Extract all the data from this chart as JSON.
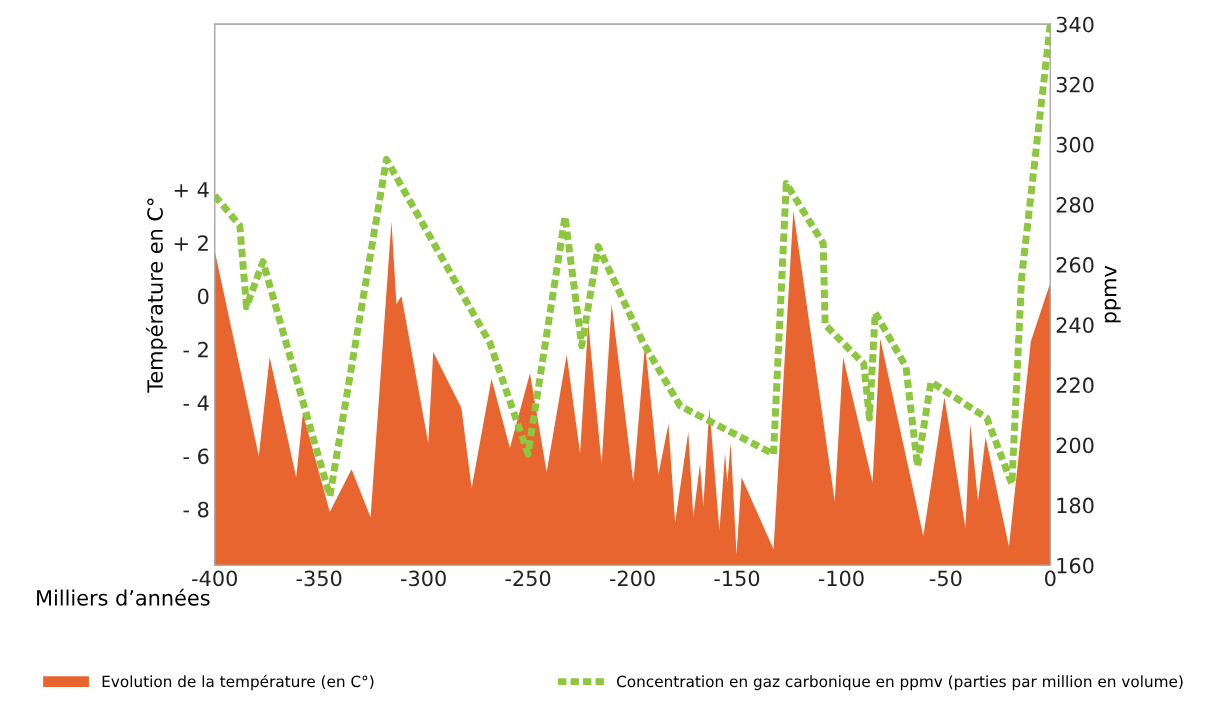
{
  "chart_data": {
    "type": "area",
    "xlabel": "Milliers d’années",
    "ylabel": "Température en C°",
    "y2label": "ppmv",
    "xlim": [
      -400,
      0
    ],
    "xticks": [
      -400,
      -350,
      -300,
      -250,
      -200,
      -150,
      -100,
      -50,
      0
    ],
    "ylim": [
      -10.1,
      10.2
    ],
    "yticks": [
      {
        "value": 4,
        "label": "+ 4"
      },
      {
        "value": 2,
        "label": "+ 2"
      },
      0,
      {
        "value": -2,
        "label": "- 2"
      },
      {
        "value": -4,
        "label": "- 4"
      },
      {
        "value": -6,
        "label": "- 6"
      },
      {
        "value": -8,
        "label": "- 8"
      }
    ],
    "y2lim": [
      160,
      340
    ],
    "y2ticks": [
      160,
      180,
      200,
      220,
      240,
      260,
      280,
      300,
      320,
      340
    ],
    "grid": false,
    "legend": "bottom",
    "series": [
      {
        "name": "Evolution de la température (en C°)",
        "color": "#e9652f",
        "x": [
          -400,
          -378.9,
          -373.7,
          -361,
          -357.8,
          -344.9,
          -334.5,
          -325.4,
          -315.4,
          -313,
          -310.6,
          -297.8,
          -295.4,
          -281.9,
          -277,
          -267.5,
          -258.7,
          -249.1,
          -241.1,
          -231.5,
          -225.1,
          -221.2,
          -214.8,
          -210,
          -199.6,
          -194,
          -187.6,
          -182.8,
          -179.6,
          -173.3,
          -170.9,
          -167.7,
          -166.1,
          -163.2,
          -158.4,
          -155.7,
          -154.6,
          -153,
          -150.2,
          -147.8,
          -132.5,
          -123,
          -103.2,
          -99.2,
          -85.1,
          -81.4,
          -60.8,
          -50.7,
          -40.6,
          -38.3,
          -34.6,
          -31,
          -19.8,
          -9.3,
          0
        ],
        "values": [
          1.7,
          -6.0,
          -2.3,
          -6.8,
          -4.4,
          -8.1,
          -6.5,
          -8.3,
          2.8,
          -0.3,
          0.0,
          -5.5,
          -2.1,
          -4.2,
          -7.2,
          -3.1,
          -5.7,
          -2.9,
          -6.6,
          -2.2,
          -5.9,
          -1.0,
          -6.3,
          -0.3,
          -7.0,
          -1.8,
          -6.7,
          -4.8,
          -8.5,
          -5.1,
          -8.3,
          -6.3,
          -7.9,
          -4.2,
          -8.8,
          -5.9,
          -7.0,
          -5.5,
          -9.7,
          -6.8,
          -9.5,
          3.2,
          -7.7,
          -2.3,
          -7.0,
          -1.6,
          -9.0,
          -3.8,
          -8.7,
          -4.8,
          -7.7,
          -5.3,
          -9.4,
          -1.7,
          0.5
        ]
      },
      {
        "name": "Concentration en gaz carbonique en ppmv (parties par million en volume)",
        "type": "line",
        "axis": "y2",
        "color": "#8dc63f",
        "line_style": "dashed",
        "x": [
          -400,
          -388,
          -384.8,
          -376.9,
          -344.9,
          -317.8,
          -268.3,
          -250,
          -232.3,
          -224.3,
          -216.4,
          -194.9,
          -177.2,
          -132.5,
          -126.4,
          -108.7,
          -107.8,
          -89.3,
          -86.6,
          -83.8,
          -69.1,
          -63.6,
          -57.1,
          -30.4,
          -18.4,
          -13.7,
          0
        ],
        "values": [
          283,
          273,
          246,
          261,
          183,
          295,
          234,
          197,
          276,
          233,
          266,
          234,
          213,
          197,
          287,
          267,
          240,
          227,
          209,
          244,
          226,
          193,
          221,
          209,
          187,
          256,
          340
        ]
      }
    ]
  }
}
